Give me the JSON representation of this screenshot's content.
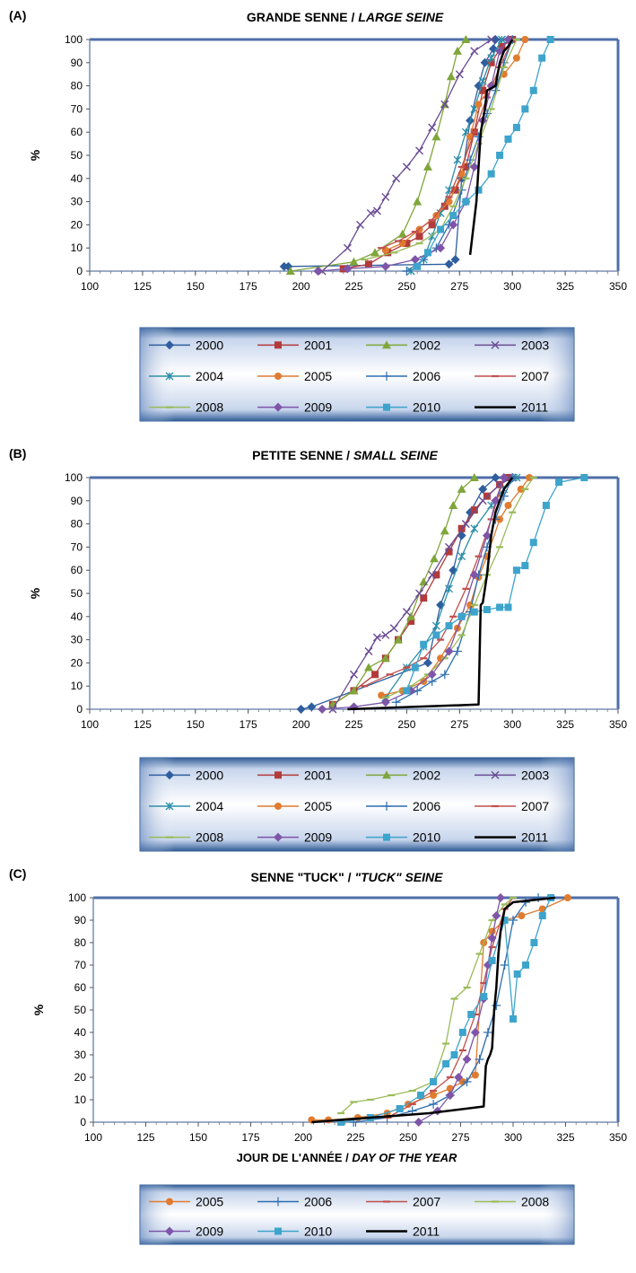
{
  "panels": [
    {
      "tag": "(A)",
      "title_fr": "GRANDE  SENNE / ",
      "title_en": "LARGE  SEINE",
      "ylabel": "%",
      "xlabel_fr": "",
      "xlabel_en": ""
    },
    {
      "tag": "(B)",
      "title_fr": "PETITE  SENNE / ",
      "title_en": "SMALL SEINE",
      "ylabel": "%",
      "xlabel_fr": "",
      "xlabel_en": ""
    },
    {
      "tag": "(C)",
      "title_fr": "SENNE  \"TUCK\" / ",
      "title_en": "\"TUCK\" SEINE",
      "ylabel": "%",
      "xlabel_fr": "JOUR DE L'ANNÉE / ",
      "xlabel_en": "DAY OF THE YEAR"
    }
  ],
  "styles": {
    "2000": {
      "color": "#2E5E9E",
      "marker": "diamond"
    },
    "2001": {
      "color": "#B33A3A",
      "marker": "square"
    },
    "2002": {
      "color": "#7FA63A",
      "marker": "triangle"
    },
    "2003": {
      "color": "#6A4C93",
      "marker": "x"
    },
    "2004": {
      "color": "#2C8FA8",
      "marker": "star"
    },
    "2005": {
      "color": "#E07B30",
      "marker": "circle"
    },
    "2006": {
      "color": "#2E6EB0",
      "marker": "plus"
    },
    "2007": {
      "color": "#C0504D",
      "marker": "dash"
    },
    "2008": {
      "color": "#9BBB59",
      "marker": "dash"
    },
    "2009": {
      "color": "#7E55A8",
      "marker": "diamond"
    },
    "2010": {
      "color": "#3DA4CC",
      "marker": "square"
    },
    "2011": {
      "color": "#000000",
      "marker": "none"
    }
  },
  "chart_data": [
    {
      "type": "line",
      "title": "GRANDE SENNE / LARGE SEINE",
      "xlabel": "",
      "ylabel": "%",
      "xlim": [
        100,
        350
      ],
      "ylim": [
        0,
        100
      ],
      "xticks": [
        100,
        125,
        150,
        175,
        200,
        225,
        250,
        275,
        300,
        325,
        350
      ],
      "yticks": [
        0,
        10,
        20,
        30,
        40,
        50,
        60,
        70,
        80,
        90,
        100
      ],
      "series": [
        {
          "name": "2000",
          "x": [
            192,
            194,
            270,
            273,
            276,
            280,
            284,
            287,
            291,
            292
          ],
          "y": [
            2,
            2,
            3,
            5,
            40,
            65,
            80,
            90,
            96,
            100
          ]
        },
        {
          "name": "2001",
          "x": [
            220,
            232,
            241,
            250,
            256,
            262,
            268,
            273,
            278,
            282,
            286,
            290,
            295,
            300
          ],
          "y": [
            1,
            3,
            8,
            12,
            15,
            20,
            28,
            35,
            45,
            60,
            78,
            90,
            97,
            100
          ]
        },
        {
          "name": "2002",
          "x": [
            195,
            225,
            235,
            248,
            255,
            260,
            264,
            268,
            271,
            274,
            278
          ],
          "y": [
            0,
            4,
            8,
            16,
            30,
            45,
            58,
            72,
            84,
            95,
            100
          ]
        },
        {
          "name": "2003",
          "x": [
            210,
            222,
            228,
            233,
            236,
            240,
            245,
            250,
            256,
            262,
            268,
            275,
            282,
            290
          ],
          "y": [
            0,
            10,
            20,
            25,
            26,
            32,
            40,
            45,
            52,
            62,
            72,
            85,
            95,
            100
          ]
        },
        {
          "name": "2004",
          "x": [
            252,
            258,
            262,
            266,
            270,
            274,
            278,
            282,
            286,
            290,
            295
          ],
          "y": [
            0,
            5,
            15,
            25,
            35,
            48,
            60,
            70,
            82,
            92,
            100
          ]
        },
        {
          "name": "2005",
          "x": [
            240,
            248,
            256,
            264,
            270,
            276,
            280,
            284,
            290,
            296,
            302,
            306
          ],
          "y": [
            9,
            12,
            18,
            24,
            30,
            42,
            58,
            72,
            80,
            85,
            92,
            100
          ]
        },
        {
          "name": "2006",
          "x": [
            250,
            258,
            264,
            270,
            276,
            280,
            284,
            288,
            292,
            296,
            300
          ],
          "y": [
            0,
            5,
            10,
            20,
            35,
            48,
            58,
            68,
            78,
            90,
            100
          ]
        },
        {
          "name": "2007",
          "x": [
            238,
            246,
            254,
            262,
            270,
            276,
            282,
            288,
            294,
            300
          ],
          "y": [
            10,
            13,
            17,
            22,
            32,
            45,
            60,
            75,
            88,
            100
          ]
        },
        {
          "name": "2008",
          "x": [
            230,
            244,
            256,
            266,
            272,
            278,
            284,
            290,
            296,
            302
          ],
          "y": [
            5,
            8,
            12,
            18,
            28,
            40,
            55,
            70,
            88,
            100
          ]
        },
        {
          "name": "2009",
          "x": [
            208,
            222,
            240,
            254,
            266,
            272,
            278,
            282,
            286,
            290,
            294,
            298
          ],
          "y": [
            0,
            1,
            2,
            5,
            10,
            20,
            30,
            45,
            65,
            80,
            95,
            100
          ]
        },
        {
          "name": "2010",
          "x": [
            255,
            260,
            266,
            272,
            278,
            284,
            290,
            294,
            298,
            302,
            306,
            310,
            314,
            318
          ],
          "y": [
            2,
            8,
            18,
            24,
            30,
            35,
            42,
            50,
            57,
            62,
            70,
            78,
            92,
            100
          ]
        },
        {
          "name": "2011",
          "x": [
            280,
            283,
            284,
            285,
            287,
            288,
            290,
            292,
            294,
            296,
            298,
            300
          ],
          "y": [
            7,
            30,
            45,
            60,
            70,
            78,
            79,
            80,
            90,
            95,
            97,
            100
          ]
        }
      ]
    },
    {
      "type": "line",
      "title": "PETITE SENNE / SMALL SEINE",
      "xlabel": "",
      "ylabel": "%",
      "xlim": [
        100,
        350
      ],
      "ylim": [
        0,
        100
      ],
      "xticks": [
        100,
        125,
        150,
        175,
        200,
        225,
        250,
        275,
        300,
        325,
        350
      ],
      "yticks": [
        0,
        10,
        20,
        30,
        40,
        50,
        60,
        70,
        80,
        90,
        100
      ],
      "series": [
        {
          "name": "2000",
          "x": [
            200,
            205,
            260,
            266,
            272,
            276,
            280,
            286,
            292
          ],
          "y": [
            0,
            1,
            20,
            45,
            60,
            75,
            85,
            95,
            100
          ]
        },
        {
          "name": "2001",
          "x": [
            215,
            225,
            235,
            240,
            246,
            252,
            258,
            264,
            270,
            276,
            282,
            288,
            294,
            298
          ],
          "y": [
            2,
            8,
            15,
            22,
            30,
            38,
            48,
            58,
            68,
            78,
            86,
            92,
            97,
            100
          ]
        },
        {
          "name": "2002",
          "x": [
            215,
            225,
            232,
            240,
            246,
            252,
            258,
            263,
            268,
            272,
            276,
            282
          ],
          "y": [
            2,
            8,
            18,
            22,
            30,
            40,
            55,
            65,
            77,
            88,
            95,
            100
          ]
        },
        {
          "name": "2003",
          "x": [
            215,
            225,
            232,
            236,
            240,
            244,
            250,
            256,
            262,
            270,
            278,
            286,
            294,
            300
          ],
          "y": [
            0,
            15,
            25,
            31,
            32,
            35,
            42,
            50,
            58,
            70,
            80,
            90,
            97,
            100
          ]
        },
        {
          "name": "2004",
          "x": [
            240,
            250,
            258,
            264,
            270,
            276,
            282,
            290,
            296,
            302
          ],
          "y": [
            5,
            18,
            27,
            36,
            52,
            66,
            78,
            88,
            95,
            100
          ]
        },
        {
          "name": "2005",
          "x": [
            238,
            248,
            258,
            266,
            274,
            280,
            284,
            288,
            294,
            298,
            304,
            308
          ],
          "y": [
            6,
            8,
            12,
            22,
            35,
            45,
            57,
            66,
            82,
            88,
            95,
            100
          ]
        },
        {
          "name": "2006",
          "x": [
            245,
            255,
            262,
            268,
            274,
            280,
            284,
            288,
            292,
            296,
            300
          ],
          "y": [
            3,
            8,
            12,
            15,
            25,
            42,
            58,
            70,
            82,
            92,
            100
          ]
        },
        {
          "name": "2007",
          "x": [
            230,
            242,
            250,
            258,
            266,
            272,
            278,
            284,
            290,
            296
          ],
          "y": [
            10,
            15,
            18,
            22,
            30,
            40,
            52,
            66,
            82,
            100
          ]
        },
        {
          "name": "2008",
          "x": [
            240,
            252,
            260,
            268,
            276,
            282,
            288,
            294,
            300,
            306,
            310
          ],
          "y": [
            5,
            10,
            15,
            22,
            32,
            45,
            58,
            70,
            85,
            95,
            100
          ]
        },
        {
          "name": "2009",
          "x": [
            210,
            225,
            240,
            252,
            262,
            270,
            276,
            282,
            288,
            292,
            296
          ],
          "y": [
            0,
            1,
            3,
            8,
            15,
            25,
            40,
            58,
            75,
            90,
            100
          ]
        },
        {
          "name": "2010",
          "x": [
            250,
            254,
            258,
            264,
            270,
            276,
            282,
            288,
            294,
            298,
            302,
            306,
            310,
            316,
            322,
            334
          ],
          "y": [
            8,
            18,
            28,
            32,
            36,
            40,
            42,
            43,
            44,
            44,
            60,
            62,
            72,
            88,
            98,
            100
          ]
        },
        {
          "name": "2011",
          "x": [
            222,
            284,
            285,
            286,
            288,
            290,
            292,
            294,
            296,
            300
          ],
          "y": [
            0,
            2,
            45,
            46,
            58,
            75,
            85,
            90,
            95,
            100
          ]
        }
      ]
    },
    {
      "type": "line",
      "title": "SENNE \"TUCK\" / \"TUCK\" SEINE",
      "xlabel": "JOUR DE L'ANNÉE / DAY OF THE YEAR",
      "ylabel": "%",
      "xlim": [
        100,
        350
      ],
      "ylim": [
        0,
        100
      ],
      "xticks": [
        100,
        125,
        150,
        175,
        200,
        225,
        250,
        275,
        300,
        325,
        350
      ],
      "yticks": [
        0,
        10,
        20,
        30,
        40,
        50,
        60,
        70,
        80,
        90,
        100
      ],
      "series": [
        {
          "name": "2005",
          "x": [
            204,
            212,
            226,
            240,
            250,
            262,
            270,
            276,
            282,
            286,
            290,
            296,
            304,
            314,
            326
          ],
          "y": [
            1,
            1,
            2,
            4,
            8,
            12,
            15,
            18,
            21,
            80,
            85,
            90,
            92,
            95,
            100
          ]
        },
        {
          "name": "2006",
          "x": [
            224,
            240,
            252,
            262,
            270,
            278,
            284,
            288,
            292,
            296,
            300,
            306,
            312
          ],
          "y": [
            0,
            2,
            5,
            8,
            12,
            18,
            28,
            40,
            52,
            70,
            90,
            98,
            100
          ]
        },
        {
          "name": "2007",
          "x": [
            240,
            252,
            262,
            270,
            276,
            282,
            286,
            290,
            296,
            300
          ],
          "y": [
            2,
            8,
            14,
            20,
            32,
            48,
            62,
            78,
            95,
            100
          ]
        },
        {
          "name": "2008",
          "x": [
            218,
            224,
            232,
            242,
            252,
            262,
            268,
            272,
            278,
            284,
            290,
            296,
            300
          ],
          "y": [
            4,
            9,
            10,
            12,
            14,
            18,
            35,
            55,
            60,
            75,
            90,
            97,
            100
          ]
        },
        {
          "name": "2009",
          "x": [
            255,
            264,
            270,
            274,
            278,
            282,
            286,
            288,
            290,
            292,
            294
          ],
          "y": [
            0,
            5,
            12,
            20,
            28,
            40,
            55,
            70,
            82,
            92,
            100
          ]
        },
        {
          "name": "2010",
          "x": [
            218,
            232,
            246,
            256,
            262,
            268,
            272,
            276,
            280,
            286,
            290,
            296,
            300,
            302,
            306,
            310,
            314,
            318
          ],
          "y": [
            0,
            2,
            6,
            12,
            18,
            26,
            30,
            40,
            48,
            56,
            72,
            90,
            46,
            66,
            70,
            80,
            92,
            100
          ]
        },
        {
          "name": "2011",
          "x": [
            204,
            260,
            286,
            287,
            288,
            289,
            290,
            291,
            292,
            293,
            294,
            296,
            300,
            310,
            320
          ],
          "y": [
            0,
            4,
            7,
            25,
            28,
            30,
            33,
            50,
            60,
            75,
            85,
            95,
            98,
            99,
            100
          ]
        }
      ]
    }
  ],
  "legends": [
    [
      "2000",
      "2001",
      "2002",
      "2003",
      "2004",
      "2005",
      "2006",
      "2007",
      "2008",
      "2009",
      "2010",
      "2011"
    ],
    [
      "2000",
      "2001",
      "2002",
      "2003",
      "2004",
      "2005",
      "2006",
      "2007",
      "2008",
      "2009",
      "2010",
      "2011"
    ],
    [
      "2005",
      "2006",
      "2007",
      "2008",
      "2009",
      "2010",
      "2011"
    ]
  ]
}
